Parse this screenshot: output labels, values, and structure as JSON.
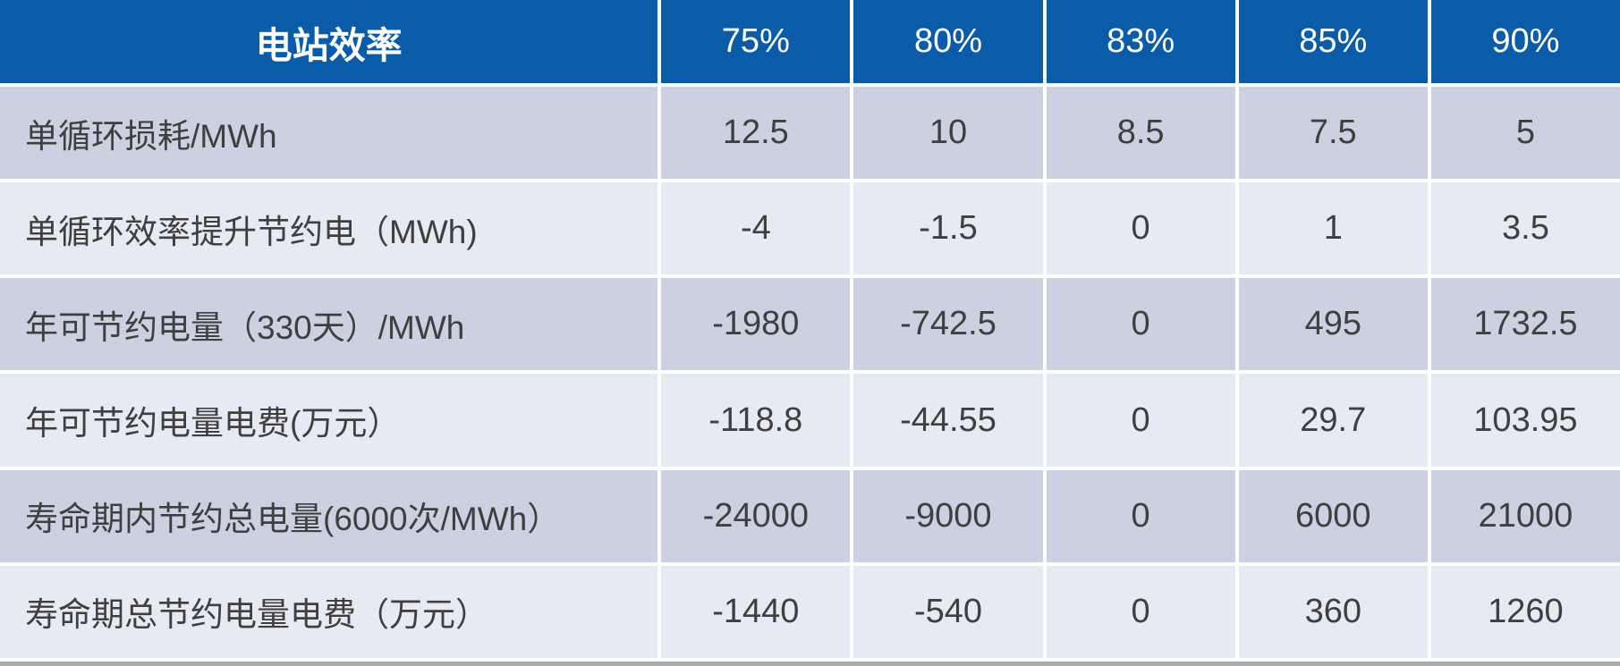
{
  "table": {
    "header": {
      "label": "电站效率",
      "columns": [
        "75%",
        "80%",
        "83%",
        "85%",
        "90%"
      ]
    },
    "rows": [
      {
        "label": "单循环损耗/MWh",
        "values": [
          "12.5",
          "10",
          "8.5",
          "7.5",
          "5"
        ]
      },
      {
        "label": "单循环效率提升节约电（MWh)",
        "values": [
          "-4",
          "-1.5",
          "0",
          "1",
          "3.5"
        ]
      },
      {
        "label": "年可节约电量（330天）/MWh",
        "values": [
          "-1980",
          "-742.5",
          "0",
          "495",
          "1732.5"
        ]
      },
      {
        "label": "年可节约电量电费(万元）",
        "values": [
          "-118.8",
          "-44.55",
          "0",
          "29.7",
          "103.95"
        ]
      },
      {
        "label": "寿命期内节约总电量(6000次/MWh）",
        "values": [
          "-24000",
          "-9000",
          "0",
          "6000",
          "21000"
        ]
      },
      {
        "label": "寿命期总节约电量电费（万元）",
        "values": [
          "-1440",
          "-540",
          "0",
          "360",
          "1260"
        ]
      }
    ]
  },
  "colors": {
    "header_bg": "#0B5CA8",
    "row_odd": "#CBD1E0",
    "row_even": "#E8EAF3",
    "text": "#3F3F3F",
    "header_text": "#FFFFFF",
    "separator": "#FFFFFF",
    "bottom_bar": "#AAADB3"
  },
  "chart_data": {
    "type": "table",
    "title": "电站效率",
    "columns": [
      "电站效率",
      "75%",
      "80%",
      "83%",
      "85%",
      "90%"
    ],
    "rows": [
      {
        "label": "单循环损耗/MWh",
        "values": [
          12.5,
          10,
          8.5,
          7.5,
          5
        ]
      },
      {
        "label": "单循环效率提升节约电（MWh)",
        "values": [
          -4,
          -1.5,
          0,
          1,
          3.5
        ]
      },
      {
        "label": "年可节约电量（330天）/MWh",
        "values": [
          -1980,
          -742.5,
          0,
          495,
          1732.5
        ]
      },
      {
        "label": "年可节约电量电费(万元）",
        "values": [
          -118.8,
          -44.55,
          0,
          29.7,
          103.95
        ]
      },
      {
        "label": "寿命期内节约总电量(6000次/MWh）",
        "values": [
          -24000,
          -9000,
          0,
          6000,
          21000
        ]
      },
      {
        "label": "寿命期总节约电量电费（万元）",
        "values": [
          -1440,
          -540,
          0,
          360,
          1260
        ]
      }
    ],
    "layout": {
      "header_row": true,
      "alternating_row_colors": true,
      "legend_position": "none",
      "grid": "white-separators"
    }
  }
}
